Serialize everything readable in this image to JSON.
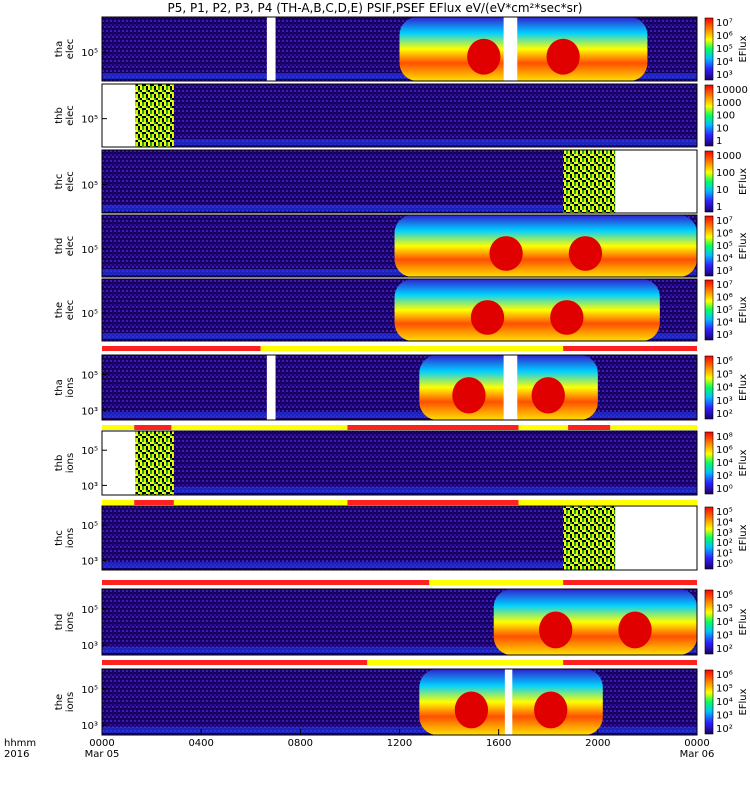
{
  "chart_data": {
    "type": "heatmap",
    "title": "P5, P1, P2, P3, P4 (TH-A,B,C,D,E) PSIF,PSEF EFlux eV/(eV*cm²*sec*sr)",
    "x_axis": {
      "corner_labels": [
        "hhmm",
        "2016"
      ],
      "ticks": [
        {
          "hour": 0,
          "label": "0000",
          "sub": "Mar 05"
        },
        {
          "hour": 4,
          "label": "0400",
          "sub": ""
        },
        {
          "hour": 8,
          "label": "0800",
          "sub": ""
        },
        {
          "hour": 12,
          "label": "1200",
          "sub": ""
        },
        {
          "hour": 16,
          "label": "1600",
          "sub": ""
        },
        {
          "hour": 20,
          "label": "2000",
          "sub": ""
        },
        {
          "hour": 24,
          "label": "0000",
          "sub": "Mar 06"
        }
      ],
      "range_hours": [
        0,
        24
      ]
    },
    "panels": [
      {
        "probe": "tha",
        "species": "elec",
        "ylabel": [
          "tha",
          "elec"
        ],
        "yticks": [
          "10⁵"
        ],
        "colorbar_ticks": [
          "10⁷",
          "10⁶",
          "10⁵",
          "10⁴",
          "10³"
        ],
        "colorbar_label": "EFlux",
        "gaps_hours": [
          [
            6.65,
            7.0
          ],
          [
            16.2,
            16.75
          ]
        ],
        "peak_hours": [
          [
            12.0,
            22.0
          ]
        ],
        "burst_hours": [],
        "status_bar": []
      },
      {
        "probe": "thb",
        "species": "elec",
        "ylabel": [
          "thb",
          "elec"
        ],
        "yticks": [
          "10⁵"
        ],
        "colorbar_ticks": [
          "10000",
          "1000",
          "100",
          "10",
          "1"
        ],
        "colorbar_label": "",
        "gaps_hours": [
          [
            0.0,
            1.35
          ]
        ],
        "peak_hours": [],
        "burst_hours": [
          [
            1.35,
            2.9
          ]
        ],
        "status_bar": []
      },
      {
        "probe": "thc",
        "species": "elec",
        "ylabel": [
          "thc",
          "elec"
        ],
        "yticks": [
          "10⁵"
        ],
        "colorbar_ticks": [
          "1000",
          "100",
          "10",
          "1"
        ],
        "colorbar_label": "EFlux",
        "gaps_hours": [
          [
            20.7,
            24.0
          ]
        ],
        "peak_hours": [],
        "burst_hours": [
          [
            18.6,
            20.7
          ]
        ],
        "status_bar": []
      },
      {
        "probe": "thd",
        "species": "elec",
        "ylabel": [
          "thd",
          "elec"
        ],
        "yticks": [
          "10⁵"
        ],
        "colorbar_ticks": [
          "10⁷",
          "10⁶",
          "10⁵",
          "10⁴",
          "10³"
        ],
        "colorbar_label": "EFlux",
        "gaps_hours": [],
        "peak_hours": [
          [
            11.8,
            24.0
          ]
        ],
        "burst_hours": [],
        "status_bar": []
      },
      {
        "probe": "the",
        "species": "elec",
        "ylabel": [
          "the",
          "elec"
        ],
        "yticks": [
          "10⁵"
        ],
        "colorbar_ticks": [
          "10⁷",
          "10⁶",
          "10⁵",
          "10⁴",
          "10³"
        ],
        "colorbar_label": "EFlux",
        "gaps_hours": [],
        "peak_hours": [
          [
            11.8,
            22.5
          ]
        ],
        "burst_hours": [],
        "status_bar": [
          {
            "color": "#ff2020",
            "span": [
              0,
              6.4
            ]
          },
          {
            "color": "#ffff00",
            "span": [
              6.4,
              18.6
            ]
          },
          {
            "color": "#ff2020",
            "span": [
              18.6,
              24
            ]
          }
        ]
      },
      {
        "probe": "tha",
        "species": "ions",
        "ylabel": [
          "tha",
          "ions"
        ],
        "yticks": [
          "10⁵",
          "10³"
        ],
        "colorbar_ticks": [
          "10⁶",
          "10⁵",
          "10⁴",
          "10³",
          "10²"
        ],
        "colorbar_label": "EFlux",
        "gaps_hours": [
          [
            6.65,
            7.0
          ],
          [
            16.2,
            16.75
          ]
        ],
        "peak_hours": [
          [
            12.8,
            20.0
          ]
        ],
        "burst_hours": [],
        "status_bar": [
          {
            "color": "#ffff00",
            "span": [
              0,
              1.3
            ]
          },
          {
            "color": "#ff2020",
            "span": [
              1.3,
              2.8
            ]
          },
          {
            "color": "#ffff00",
            "span": [
              2.8,
              9.9
            ]
          },
          {
            "color": "#ff2020",
            "span": [
              9.9,
              16.8
            ]
          },
          {
            "color": "#ffff00",
            "span": [
              16.8,
              18.8
            ]
          },
          {
            "color": "#ff2020",
            "span": [
              18.8,
              20.5
            ]
          },
          {
            "color": "#ffff00",
            "span": [
              20.5,
              24
            ]
          }
        ]
      },
      {
        "probe": "thb",
        "species": "ions",
        "ylabel": [
          "thb",
          "ions"
        ],
        "yticks": [
          "10⁵",
          "10³"
        ],
        "colorbar_ticks": [
          "10⁸",
          "10⁶",
          "10⁴",
          "10²",
          "10⁰"
        ],
        "colorbar_label": "EFlux",
        "gaps_hours": [
          [
            0.0,
            1.35
          ]
        ],
        "peak_hours": [],
        "burst_hours": [
          [
            1.35,
            2.9
          ]
        ],
        "status_bar": [
          {
            "color": "#ffff00",
            "span": [
              0,
              1.3
            ]
          },
          {
            "color": "#ff2020",
            "span": [
              1.3,
              2.9
            ]
          },
          {
            "color": "#ffff00",
            "span": [
              2.9,
              9.9
            ]
          },
          {
            "color": "#ff2020",
            "span": [
              9.9,
              16.8
            ]
          },
          {
            "color": "#ffff00",
            "span": [
              16.8,
              24
            ]
          }
        ]
      },
      {
        "probe": "thc",
        "species": "ions",
        "ylabel": [
          "thc",
          "ions"
        ],
        "yticks": [
          "10⁵",
          "10³"
        ],
        "colorbar_ticks": [
          "10⁵",
          "10⁴",
          "10³",
          "10²",
          "10¹",
          "10⁰"
        ],
        "colorbar_label": "EFlux",
        "gaps_hours": [
          [
            20.7,
            24.0
          ]
        ],
        "peak_hours": [],
        "burst_hours": [
          [
            18.6,
            20.7
          ]
        ],
        "status_bar": [
          {
            "color": "#ff2020",
            "span": [
              0,
              13.2
            ]
          },
          {
            "color": "#ffff00",
            "span": [
              13.2,
              18.6
            ]
          },
          {
            "color": "#ff2020",
            "span": [
              18.6,
              24
            ]
          }
        ]
      },
      {
        "probe": "thd",
        "species": "ions",
        "ylabel": [
          "thd",
          "ions"
        ],
        "yticks": [
          "10⁵",
          "10³"
        ],
        "colorbar_ticks": [
          "10⁶",
          "10⁵",
          "10⁴",
          "10³",
          "10²"
        ],
        "colorbar_label": "EFlux",
        "gaps_hours": [],
        "peak_hours": [
          [
            15.8,
            24.0
          ]
        ],
        "burst_hours": [],
        "status_bar": [
          {
            "color": "#ff2020",
            "span": [
              0,
              10.7
            ]
          },
          {
            "color": "#ffff00",
            "span": [
              10.7,
              18.6
            ]
          },
          {
            "color": "#ff2020",
            "span": [
              18.6,
              24
            ]
          }
        ]
      },
      {
        "probe": "the",
        "species": "ions",
        "ylabel": [
          "the",
          "ions"
        ],
        "yticks": [
          "10⁵",
          "10³"
        ],
        "colorbar_ticks": [
          "10⁶",
          "10⁵",
          "10⁴",
          "10³",
          "10²"
        ],
        "colorbar_label": "EFlux",
        "gaps_hours": [
          [
            16.25,
            16.55
          ]
        ],
        "peak_hours": [
          [
            12.8,
            20.2
          ]
        ],
        "burst_hours": [],
        "status_bar": []
      }
    ],
    "colors": {
      "low": "#1a0070",
      "mid": "#00c0ff",
      "peak": "#ff1000",
      "status_red": "#ff2020",
      "status_yellow": "#ffff00"
    }
  }
}
